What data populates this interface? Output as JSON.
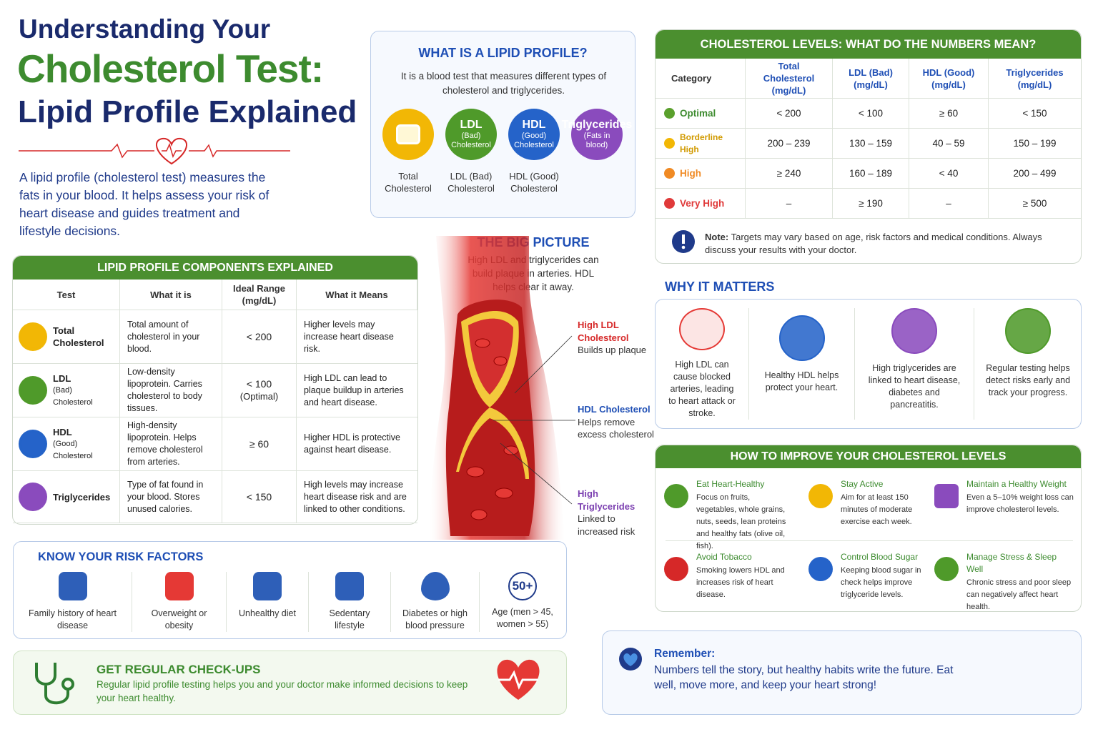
{
  "header": {
    "title_line1": "Understanding Your",
    "title_line2": "Cholesterol Test:",
    "title_line3": "Lipid Profile Explained",
    "intro": "A lipid profile (cholesterol test) measures the fats in your blood. It helps assess your risk of heart disease and guides treatment and lifestyle decisions."
  },
  "lipid_profile": {
    "title": "WHAT IS A LIPID PROFILE?",
    "description": "It is a blood test that measures different types of cholesterol and triglycerides.",
    "items": [
      {
        "circle_title": null,
        "circle_sub": null,
        "label": "Total Cholesterol",
        "color": "#f2b705"
      },
      {
        "circle_title": "LDL",
        "circle_sub": "(Bad) Cholesterol",
        "label": "LDL (Bad) Cholesterol",
        "color": "#4f9a2a"
      },
      {
        "circle_title": "HDL",
        "circle_sub": "(Good) Cholesterol",
        "label": "HDL (Good) Cholesterol",
        "color": "#2563c9"
      },
      {
        "circle_title": "Triglycerides",
        "circle_sub": "(Fats in blood)",
        "label": null,
        "color": "#8a4bbd"
      }
    ]
  },
  "components": {
    "title": "LIPID PROFILE COMPONENTS EXPLAINED",
    "headers": [
      "Test",
      "What it is",
      "Ideal Range (mg/dL)",
      "What it Means"
    ],
    "rows": [
      {
        "test": "Total Cholesterol",
        "test_sub": null,
        "what": "Total amount of cholesterol in your blood.",
        "range": "< 200",
        "range_note": null,
        "meaning": "Higher levels may increase heart disease risk.",
        "color": "#f2b705"
      },
      {
        "test": "LDL",
        "test_sub": "(Bad) Cholesterol",
        "what": "Low-density lipoprotein. Carries cholesterol to body tissues.",
        "range": "< 100",
        "range_note": "(Optimal)",
        "meaning": "High LDL can lead to plaque buildup in arteries and heart disease.",
        "color": "#4f9a2a"
      },
      {
        "test": "HDL",
        "test_sub": "(Good) Cholesterol",
        "what": "High-density lipoprotein. Helps remove cholesterol from arteries.",
        "range": "≥ 60",
        "range_note": null,
        "meaning": "Higher HDL is protective against heart disease.",
        "color": "#2563c9"
      },
      {
        "test": "Triglycerides",
        "test_sub": null,
        "what": "Type of fat found in your blood. Stores unused calories.",
        "range": "< 150",
        "range_note": null,
        "meaning": "High levels may increase heart disease risk and are linked to other conditions.",
        "color": "#8a4bbd"
      }
    ]
  },
  "big_picture": {
    "title": "THE BIG PICTURE",
    "text": "High LDL and triglycerides can build plaque in arteries. HDL helps clear it away.",
    "callouts": [
      {
        "title": "High LDL Cholesterol",
        "text": "Builds up plaque",
        "color": "#d62828"
      },
      {
        "title": "HDL Cholesterol",
        "text": "Helps remove excess cholesterol",
        "color": "#1f4fb5"
      },
      {
        "title": "High Triglycerides",
        "text": "Linked to increased risk",
        "color": "#7b3fb0"
      }
    ]
  },
  "levels": {
    "title": "CHOLESTEROL LEVELS: WHAT DO THE NUMBERS MEAN?",
    "headers": [
      "Category",
      "Total Cholesterol (mg/dL)",
      "LDL (Bad) (mg/dL)",
      "HDL (Good) (mg/dL)",
      "Triglycerides (mg/dL)"
    ],
    "rows": [
      {
        "category": "Optimal",
        "color": "#5aa02c",
        "cells": [
          "< 200",
          "< 100",
          "≥ 60",
          "< 150"
        ]
      },
      {
        "category": "Borderline High",
        "color": "#f2b705",
        "cells": [
          "200 – 239",
          "130 – 159",
          "40 – 59",
          "150 – 199"
        ]
      },
      {
        "category": "High",
        "color": "#f08a24",
        "cells": [
          "≥ 240",
          "160 – 189",
          "< 40",
          "200 – 499"
        ]
      },
      {
        "category": "Very High",
        "color": "#e03a3a",
        "cells": [
          "–",
          "≥ 190",
          "–",
          "≥ 500"
        ]
      }
    ],
    "note_label": "Note:",
    "note": "Targets may vary based on age, risk factors and medical conditions. Always discuss your results with your doctor."
  },
  "why": {
    "title": "WHY IT MATTERS",
    "items": [
      {
        "text": "High LDL can cause blocked arteries, leading to heart attack or stroke.",
        "color": "#e53935"
      },
      {
        "text": "Healthy HDL helps protect your heart.",
        "color": "#2563c9"
      },
      {
        "text": "High triglycerides are linked to heart disease, diabetes and pancreatitis.",
        "color": "#8a4bbd"
      },
      {
        "text": "Regular testing helps detect risks early and track your progress.",
        "color": "#4f9a2a"
      }
    ]
  },
  "improve": {
    "title": "HOW TO IMPROVE YOUR CHOLESTEROL LEVELS",
    "items": [
      {
        "title": "Eat Heart-Healthy",
        "text": "Focus on fruits, vegetables, whole grains, nuts, seeds, lean proteins and healthy fats (olive oil, fish).",
        "color": "#4f9a2a"
      },
      {
        "title": "Stay Active",
        "text": "Aim for at least 150 minutes of moderate exercise each week.",
        "color": "#f2b705"
      },
      {
        "title": "Maintain a Healthy Weight",
        "text": "Even a 5–10% weight loss can improve cholesterol levels.",
        "color": "#8a4bbd"
      },
      {
        "title": "Avoid Tobacco",
        "text": "Smoking lowers HDL and increases risk of heart disease.",
        "color": "#d62828"
      },
      {
        "title": "Control Blood Sugar",
        "text": "Keeping blood sugar in check helps improve triglyceride levels.",
        "color": "#2563c9"
      },
      {
        "title": "Manage Stress & Sleep Well",
        "text": "Chronic stress and poor sleep can negatively affect heart health.",
        "color": "#4f9a2a"
      }
    ]
  },
  "risk": {
    "title": "KNOW YOUR RISK FACTORS",
    "items": [
      {
        "label": "Family history of heart disease",
        "icon_text": null
      },
      {
        "label": "Overweight or obesity",
        "icon_text": null
      },
      {
        "label": "Unhealthy diet",
        "icon_text": null
      },
      {
        "label": "Sedentary lifestyle",
        "icon_text": null
      },
      {
        "label": "Diabetes or high blood pressure",
        "icon_text": null
      },
      {
        "label": "Age (men > 45, women > 55)",
        "icon_text": "50+"
      }
    ]
  },
  "checkups": {
    "title": "GET REGULAR CHECK-UPS",
    "text": "Regular lipid profile testing helps you and your doctor make informed decisions to keep your heart healthy."
  },
  "remember": {
    "title": "Remember:",
    "text": "Numbers tell the story, but healthy habits write the future. Eat well, move more, and keep your heart strong!"
  }
}
